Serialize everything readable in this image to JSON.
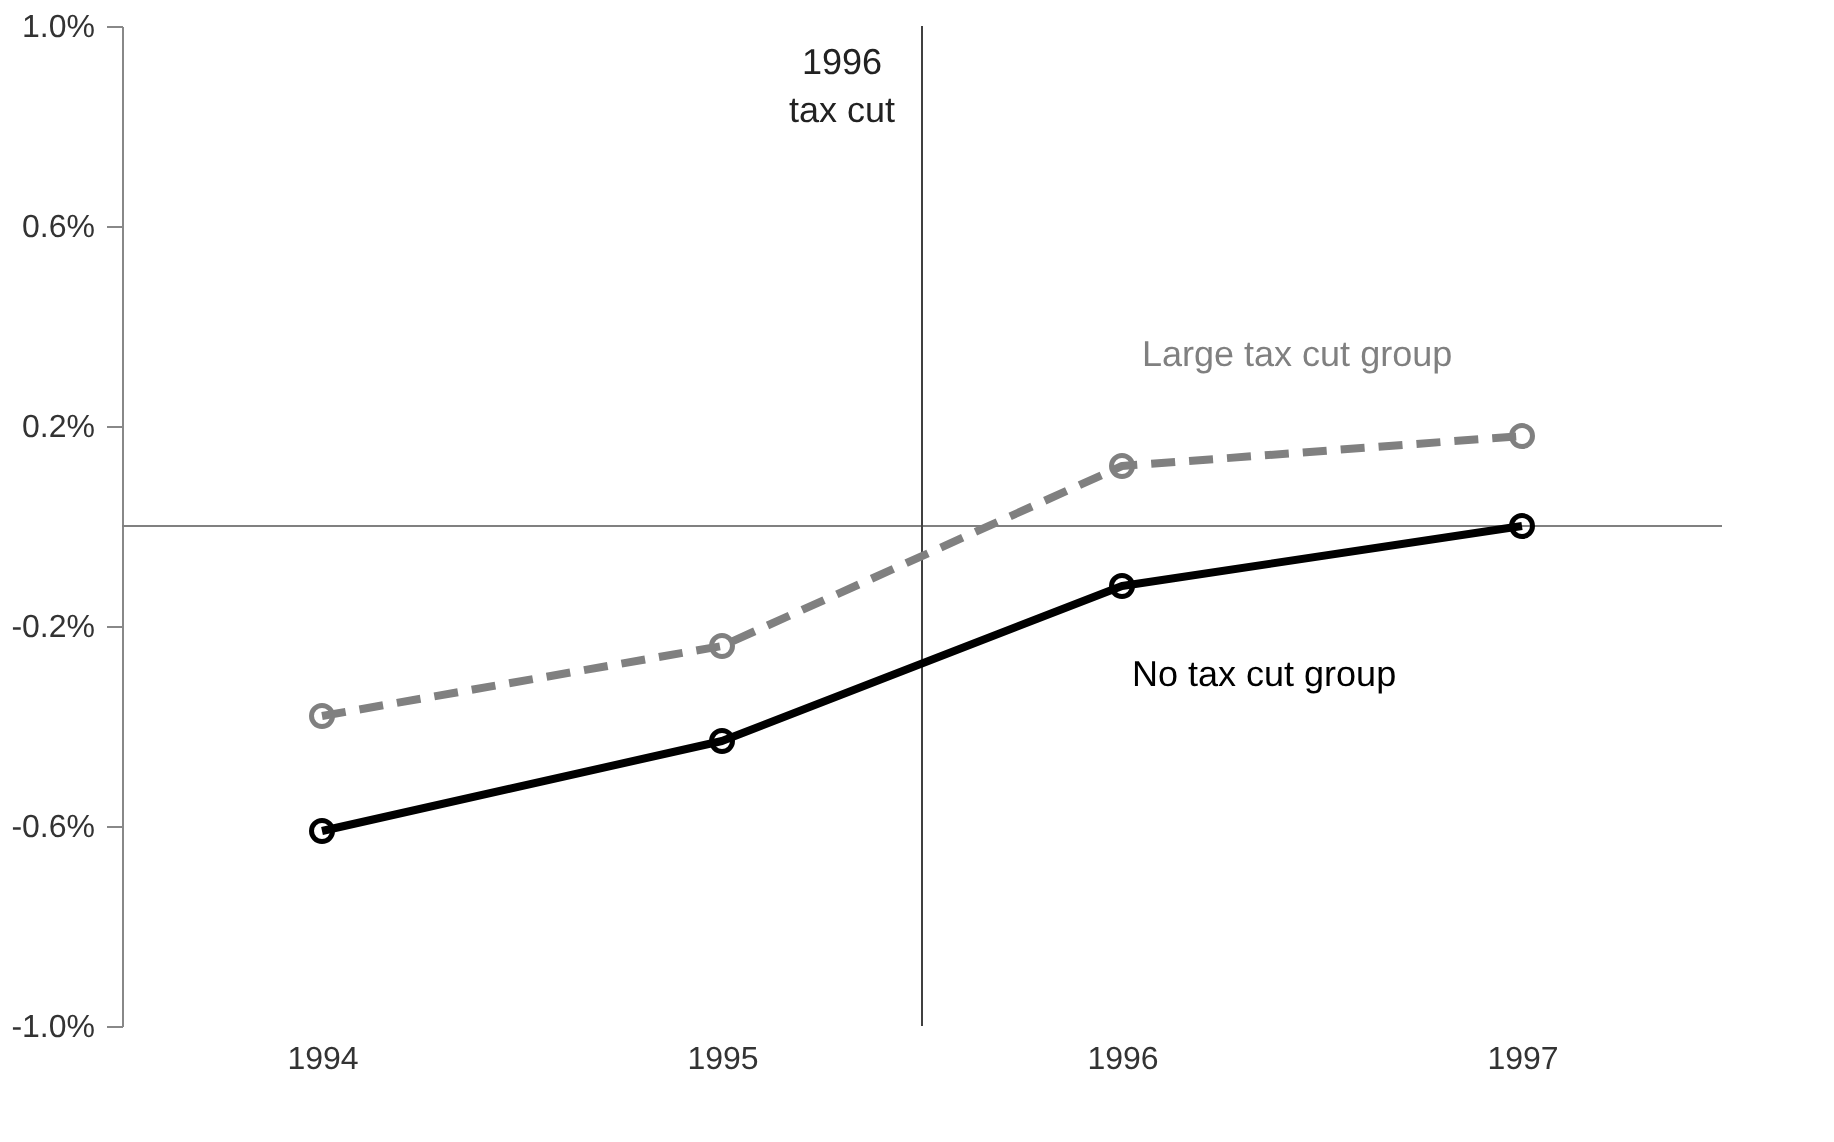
{
  "chart_data": {
    "type": "line",
    "x": [
      1994,
      1995,
      1996,
      1997
    ],
    "xlim": [
      1993.5,
      1997.5
    ],
    "xticks": [
      {
        "value": 1994,
        "label": "1994"
      },
      {
        "value": 1995,
        "label": "1995"
      },
      {
        "value": 1996,
        "label": "1996"
      },
      {
        "value": 1997,
        "label": "1997"
      }
    ],
    "ylim": [
      -1.0,
      1.0
    ],
    "yticks": [
      {
        "value": -1.0,
        "label": "-1.0%"
      },
      {
        "value": -0.6,
        "label": "-0.6%"
      },
      {
        "value": -0.2,
        "label": "-0.2%"
      },
      {
        "value": 0.2,
        "label": "0.2%"
      },
      {
        "value": 0.6,
        "label": "0.6%"
      },
      {
        "value": 1.0,
        "label": "1.0%"
      }
    ],
    "series": [
      {
        "name": "Large tax cut group",
        "color": "#808080",
        "line_style": "dashed",
        "values": [
          -0.38,
          -0.24,
          0.12,
          0.18
        ]
      },
      {
        "name": "No tax cut group",
        "color": "#000000",
        "line_style": "solid",
        "values": [
          -0.61,
          -0.43,
          -0.12,
          0.0
        ]
      }
    ],
    "ref_lines": [
      {
        "axis": "y",
        "value": 0,
        "color": "#808080"
      },
      {
        "axis": "x",
        "value": 1995.5,
        "label": "1996\ntax cut",
        "color": "#404040"
      }
    ],
    "marker": "circle",
    "grid": false
  }
}
